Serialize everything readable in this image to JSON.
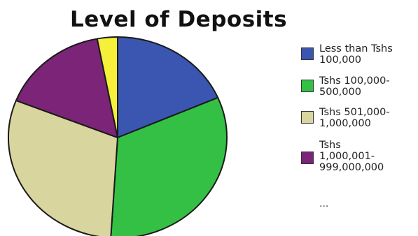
{
  "chart_data": {
    "type": "pie",
    "title": "Level of Deposits",
    "categories": [
      "Less than Tshs 100,000",
      "Tshs 100,000-500,000",
      "Tshs 501,000-1,000,000",
      "Tshs 1,000,001-999,000,000",
      ""
    ],
    "values": [
      18.5,
      32.5,
      30.0,
      16.0,
      3.0
    ],
    "colors": [
      "#3a56b0",
      "#33c045",
      "#d8d59e",
      "#7b2478",
      "#f7f03b"
    ],
    "legend_position": "right",
    "legend_truncated_marker": "..."
  },
  "legend": [
    {
      "label": "Less than Tshs\n100,000",
      "color": "#3a56b0"
    },
    {
      "label": "Tshs 100,000-\n500,000",
      "color": "#33c045"
    },
    {
      "label": "Tshs 501,000-\n1,000,000",
      "color": "#d8d59e"
    },
    {
      "label": "Tshs\n1,000,001-\n999,000,000",
      "color": "#7b2478"
    }
  ]
}
